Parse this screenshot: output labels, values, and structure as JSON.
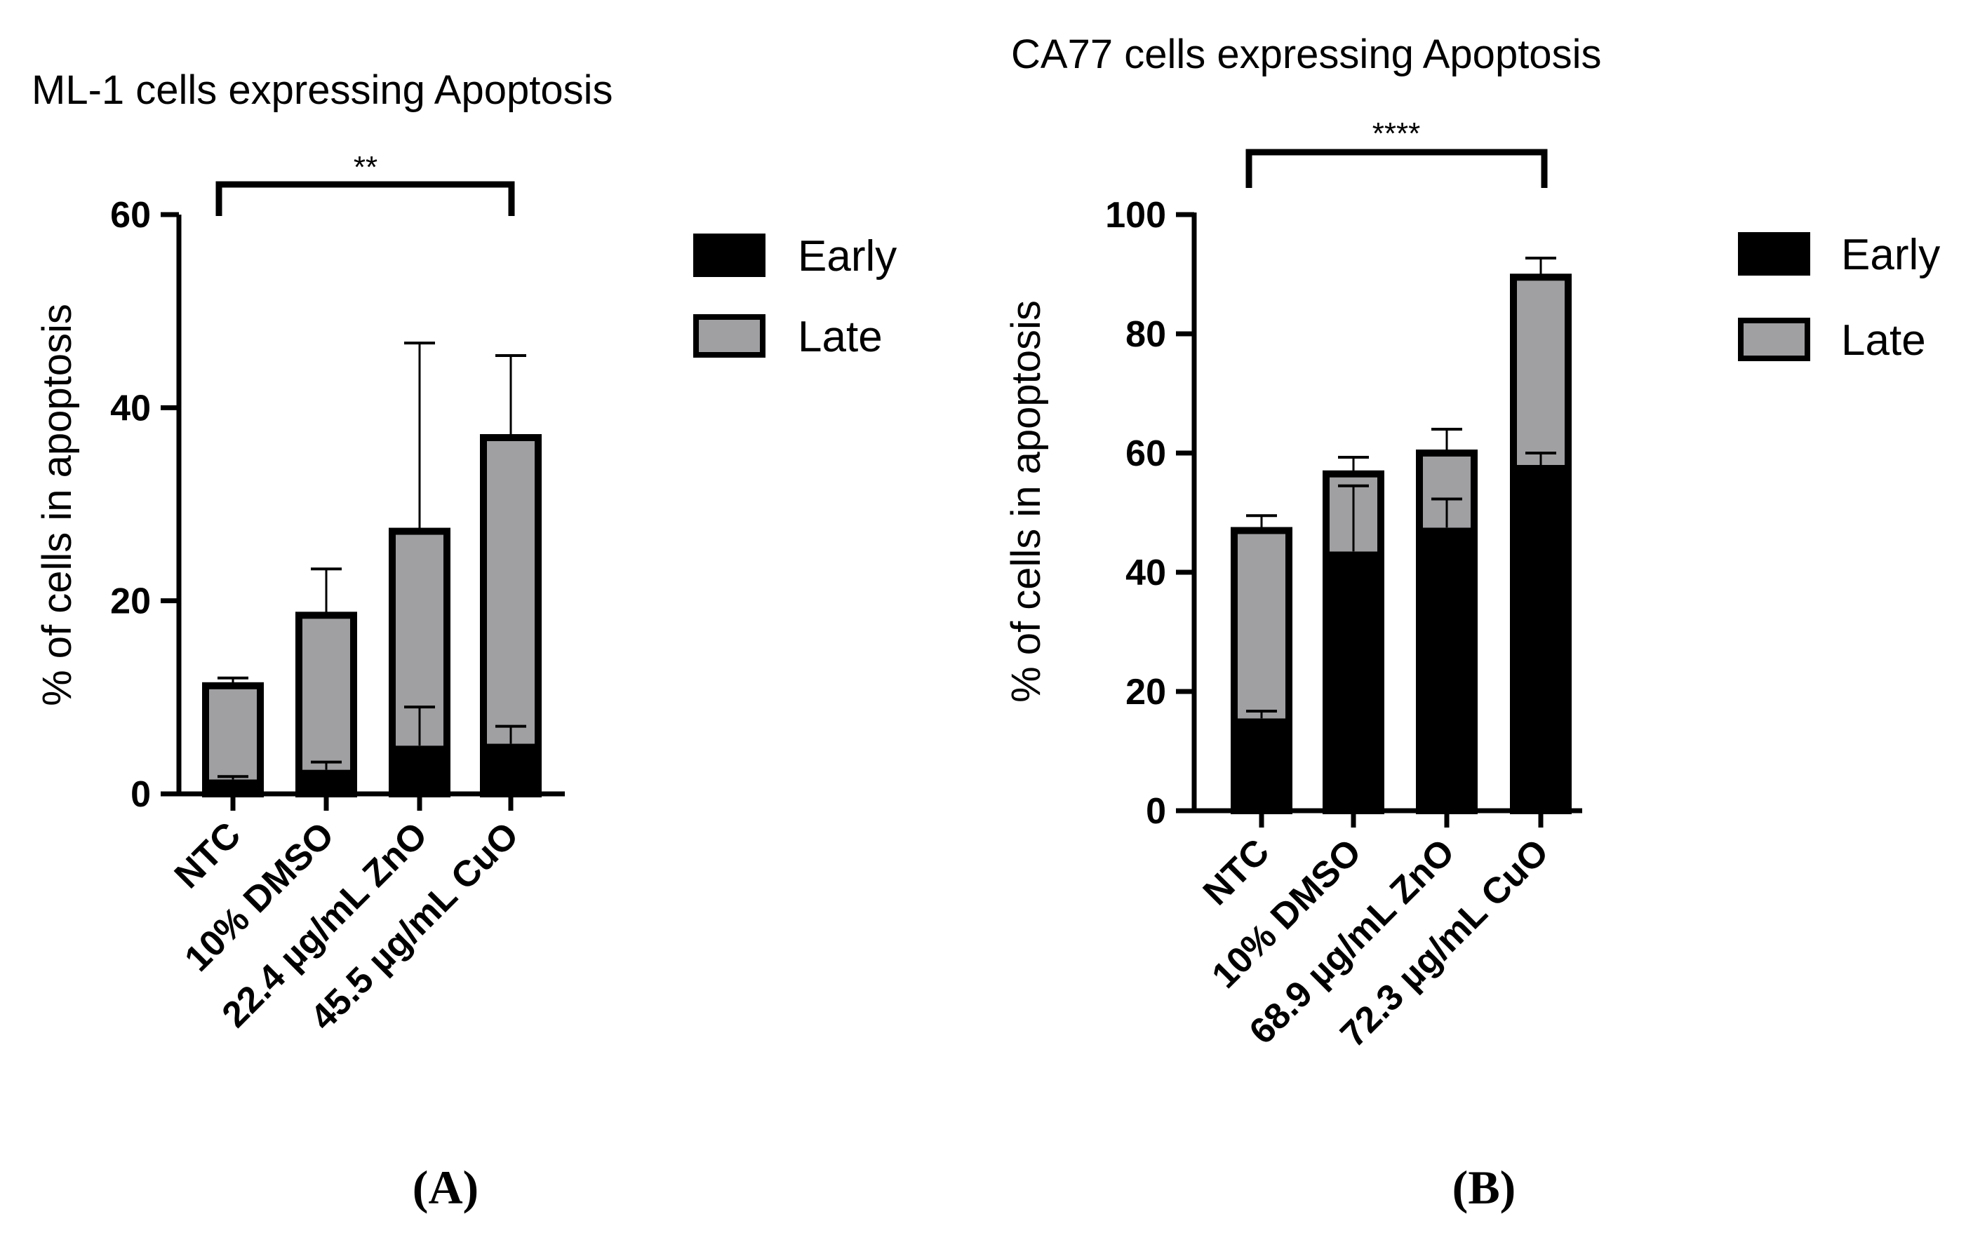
{
  "chart_data": [
    {
      "type": "bar",
      "stacked": true,
      "panel_label": "(A)",
      "title": "ML-1 cells expressing Apoptosis",
      "xlabel": "",
      "ylabel": "% of cells in apoptosis",
      "ylim": [
        0,
        60
      ],
      "yticks": [
        0,
        20,
        40,
        60
      ],
      "categories": [
        "NTC",
        "10% DMSO",
        "22.4 µg/mL ZnO",
        "45.5 µg/mL CuO"
      ],
      "series": [
        {
          "name": "Early",
          "color": "#000000",
          "values": [
            1.5,
            2.5,
            5.0,
            5.2
          ],
          "error": [
            0.3,
            0.8,
            4.0,
            1.8
          ]
        },
        {
          "name": "Late",
          "color": "#a0a0a3",
          "values": [
            9.7,
            16.0,
            22.2,
            31.7
          ],
          "error": [
            0.8,
            4.8,
            19.5,
            8.5
          ]
        }
      ],
      "legend_position": "right",
      "significance": {
        "from": 0,
        "to": 3,
        "label": "**"
      }
    },
    {
      "type": "bar",
      "stacked": true,
      "panel_label": "(B)",
      "title": "CA77 cells expressing Apoptosis",
      "xlabel": "",
      "ylabel": "% of cells in apoptosis",
      "ylim": [
        0,
        100
      ],
      "yticks": [
        0,
        20,
        40,
        60,
        80,
        100
      ],
      "categories": [
        "NTC",
        "10% DMSO",
        "68.9 µg/mL ZnO",
        "72.3 µg/mL CuO"
      ],
      "series": [
        {
          "name": "Early",
          "color": "#000000",
          "values": [
            15.5,
            43.5,
            47.5,
            58.0
          ],
          "error": [
            1.2,
            11.0,
            4.8,
            2.0
          ]
        },
        {
          "name": "Late",
          "color": "#a0a0a3",
          "values": [
            31.5,
            13.0,
            12.5,
            31.5
          ],
          "error": [
            2.5,
            2.8,
            4.0,
            3.2
          ]
        }
      ],
      "legend_position": "right",
      "significance": {
        "from": 0,
        "to": 3,
        "label": "****"
      }
    }
  ]
}
